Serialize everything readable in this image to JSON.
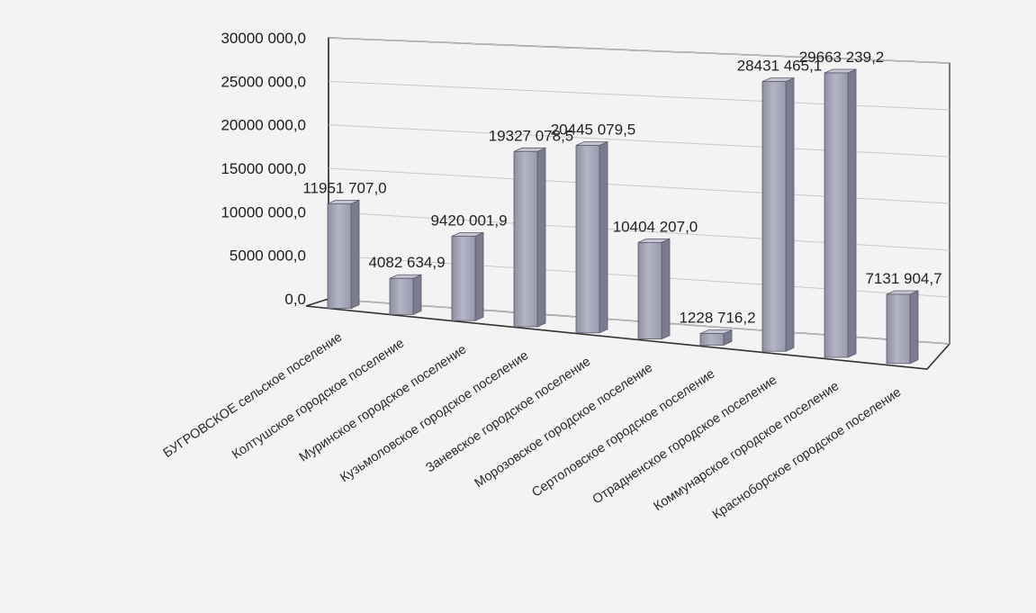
{
  "chart_data": {
    "type": "bar",
    "title": "",
    "xlabel": "",
    "ylabel": "",
    "ylim": [
      0,
      30000000
    ],
    "yticks": [
      0,
      5000000,
      10000000,
      15000000,
      20000000,
      25000000,
      30000000
    ],
    "ytick_labels": [
      "0,0",
      "5000 000,0",
      "10000 000,0",
      "15000 000,0",
      "20000 000,0",
      "25000 000,0",
      "30000 000,0"
    ],
    "grid": true,
    "legend": "none",
    "bar_color": "#a4a4b8",
    "categories": [
      "БУГРОВСКОЕ сельское поселение",
      "Колтушское городское поселение",
      "Муринское городское поселение",
      "Кузьмоловское городское поселение",
      "Заневское городское поселение",
      "Морозовское городское поселение",
      "Сертоловское городское поселение",
      "Отрадненское городское поселение",
      "Коммунарское городское поселение",
      "Красноборское городское поселение"
    ],
    "values": [
      11951707.0,
      4082634.9,
      9420001.9,
      19327078.5,
      20445079.5,
      10404207.0,
      1228716.2,
      28431465.1,
      29663239.2,
      7131904.7
    ],
    "value_labels": [
      "11951 707,0",
      "4082 634,9",
      "9420 001,9",
      "19327 078,5",
      "20445 079,5",
      "10404 207,0",
      "1228 716,2",
      "28431 465,1",
      "29663 239,2",
      "7131 904,7"
    ]
  }
}
